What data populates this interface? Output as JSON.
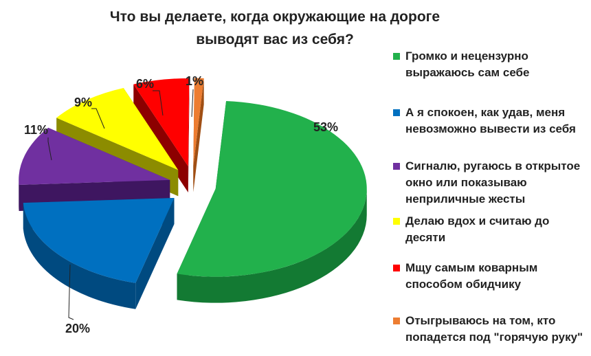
{
  "chart_data": {
    "type": "pie",
    "title_lines": [
      "Что вы делаете, когда окружающие на дороге",
      "выводят вас из себя?"
    ],
    "slices": [
      {
        "name": "Громко и нецензурно выражаюсь сам себе",
        "value": 53,
        "label": "53%",
        "color": "#22B14C",
        "side": "#137A33"
      },
      {
        "name": "А я спокоен, как удав, меня невозможно вывести из себя",
        "value": 20,
        "label": "20%",
        "color": "#0070C0",
        "side": "#004A80"
      },
      {
        "name": "Сигналю, ругаюсь в открытое окно или показываю неприличные жесты",
        "value": 11,
        "label": "11%",
        "color": "#7030A0",
        "side": "#3E1660"
      },
      {
        "name": "Делаю вдох и считаю до десяти",
        "value": 9,
        "label": "9%",
        "color": "#FFFF00",
        "side": "#8C8C00"
      },
      {
        "name": "Мщу самым коварным способом обидчику",
        "value": 6,
        "label": "6%",
        "color": "#FF0000",
        "side": "#8C0000"
      },
      {
        "name": "Отыгрываюсь на том, кто попадется под \"горячую руку\"",
        "value": 1,
        "label": "1%",
        "color": "#ED7D31",
        "side": "#A04F14"
      }
    ],
    "legend": {
      "placement": "right",
      "items": [
        {
          "lines": [
            "Громко и нецензурно",
            "выражаюсь сам себе"
          ],
          "color": "#22B14C"
        },
        {
          "lines": [
            "А я спокоен, как удав, меня",
            "невозможно вывести из себя"
          ],
          "color": "#0070C0"
        },
        {
          "lines": [
            "Сигналю, ругаюсь в открытое",
            "окно или показываю",
            "неприличные жесты"
          ],
          "color": "#7030A0"
        },
        {
          "lines": [
            "Делаю вдох и считаю до",
            "десяти"
          ],
          "color": "#FFFF00"
        },
        {
          "lines": [
            "Мщу самым коварным",
            "способом обидчику"
          ],
          "color": "#FF0000"
        },
        {
          "lines": [
            "Отыгрываюсь на том, кто",
            "попадется под \"горячую руку\""
          ],
          "color": "#ED7D31"
        }
      ]
    }
  }
}
